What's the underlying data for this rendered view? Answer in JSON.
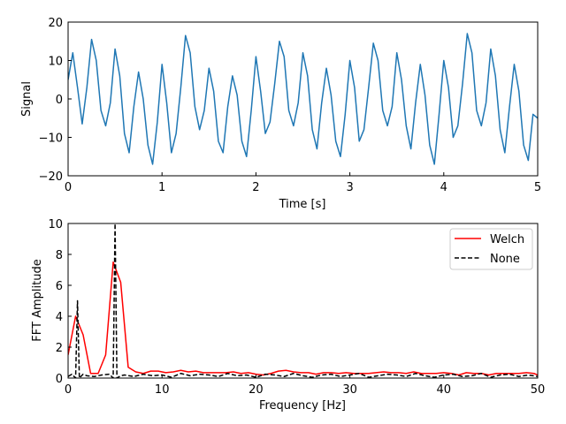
{
  "chart_data": [
    {
      "type": "line",
      "xlabel": "Time [s]",
      "ylabel": "Signal",
      "xlim": [
        0,
        5
      ],
      "ylim": [
        -20,
        20
      ],
      "xticks": [
        0,
        1,
        2,
        3,
        4,
        5
      ],
      "yticks": [
        -20,
        -10,
        0,
        10,
        20
      ],
      "grid": false,
      "series": [
        {
          "color": "#1f77b4",
          "x": [
            0.0,
            0.05,
            0.1,
            0.15,
            0.2,
            0.25,
            0.3,
            0.35,
            0.4,
            0.45,
            0.5,
            0.55,
            0.6,
            0.65,
            0.7,
            0.75,
            0.8,
            0.85,
            0.9,
            0.95,
            1.0,
            1.05,
            1.1,
            1.15,
            1.2,
            1.25,
            1.3,
            1.35,
            1.4,
            1.45,
            1.5,
            1.55,
            1.6,
            1.65,
            1.7,
            1.75,
            1.8,
            1.85,
            1.9,
            1.95,
            2.0,
            2.05,
            2.1,
            2.15,
            2.2,
            2.25,
            2.3,
            2.35,
            2.4,
            2.45,
            2.5,
            2.55,
            2.6,
            2.65,
            2.7,
            2.75,
            2.8,
            2.85,
            2.9,
            2.95,
            3.0,
            3.05,
            3.1,
            3.15,
            3.2,
            3.25,
            3.3,
            3.35,
            3.4,
            3.45,
            3.5,
            3.55,
            3.6,
            3.65,
            3.7,
            3.75,
            3.8,
            3.85,
            3.9,
            3.95,
            4.0,
            4.05,
            4.1,
            4.15,
            4.2,
            4.25,
            4.3,
            4.35,
            4.4,
            4.45,
            4.5,
            4.55,
            4.6,
            4.65,
            4.7,
            4.75,
            4.8,
            4.85,
            4.9,
            4.95,
            5.0
          ],
          "values": [
            5.0,
            12.0,
            3.0,
            -6.5,
            3.0,
            15.5,
            10.0,
            -3.0,
            -7.0,
            -1.0,
            13.0,
            6.0,
            -9.0,
            -14.0,
            -2.0,
            7.0,
            0.0,
            -12.0,
            -17.0,
            -6.0,
            9.0,
            -1.0,
            -14.0,
            -9.0,
            3.0,
            16.5,
            12.0,
            -2.0,
            -8.0,
            -3.0,
            8.0,
            2.0,
            -11.0,
            -14.0,
            -2.0,
            6.0,
            1.0,
            -11.0,
            -15.0,
            -3.0,
            11.0,
            2.0,
            -9.0,
            -6.0,
            4.0,
            15.0,
            11.0,
            -3.0,
            -7.0,
            -1.0,
            12.0,
            6.0,
            -8.0,
            -13.0,
            -1.0,
            8.0,
            1.0,
            -11.0,
            -15.0,
            -4.0,
            10.0,
            3.0,
            -11.0,
            -8.0,
            3.0,
            14.5,
            10.0,
            -3.0,
            -7.0,
            -2.0,
            12.0,
            5.0,
            -7.0,
            -13.0,
            -1.0,
            9.0,
            1.0,
            -12.0,
            -17.0,
            -4.0,
            10.0,
            3.0,
            -10.0,
            -7.0,
            4.0,
            17.0,
            12.0,
            -3.0,
            -7.0,
            -1.0,
            13.0,
            6.0,
            -8.0,
            -14.0,
            -2.0,
            9.0,
            2.0,
            -12.0,
            -16.0,
            -4.0,
            -5.0
          ]
        }
      ]
    },
    {
      "type": "line",
      "xlabel": "Frequency [Hz]",
      "ylabel": "FFT Amplitude",
      "xlim": [
        0,
        50
      ],
      "ylim": [
        0,
        10
      ],
      "xticks": [
        0,
        10,
        20,
        30,
        40,
        50
      ],
      "yticks": [
        0,
        2,
        4,
        6,
        8,
        10
      ],
      "grid": false,
      "legend": "top-right",
      "series": [
        {
          "name": "Welch",
          "color": "#ff0000",
          "dash": "solid",
          "x": [
            0,
            0.8,
            1.6,
            2.4,
            3.2,
            4.0,
            4.8,
            5.6,
            6.4,
            7.2,
            8.0,
            8.8,
            9.6,
            10.4,
            11.2,
            12.0,
            12.8,
            13.6,
            14.4,
            15.2,
            16.0,
            16.8,
            17.6,
            18.4,
            19.2,
            20.0,
            20.8,
            21.6,
            22.4,
            23.2,
            24.0,
            24.8,
            25.6,
            26.4,
            27.2,
            28.0,
            28.8,
            29.6,
            30.4,
            31.2,
            32.0,
            32.8,
            33.6,
            34.4,
            35.2,
            36.0,
            36.8,
            37.6,
            38.4,
            39.2,
            40.0,
            40.8,
            41.6,
            42.4,
            43.2,
            44.0,
            44.8,
            45.6,
            46.4,
            47.2,
            48.0,
            48.8,
            49.6,
            50.0
          ],
          "values": [
            1.5,
            4.0,
            2.8,
            0.3,
            0.3,
            1.5,
            7.5,
            6.2,
            0.7,
            0.4,
            0.3,
            0.45,
            0.45,
            0.35,
            0.4,
            0.5,
            0.4,
            0.45,
            0.35,
            0.35,
            0.35,
            0.35,
            0.4,
            0.3,
            0.35,
            0.25,
            0.2,
            0.3,
            0.45,
            0.5,
            0.4,
            0.35,
            0.35,
            0.25,
            0.35,
            0.35,
            0.3,
            0.35,
            0.3,
            0.3,
            0.3,
            0.35,
            0.4,
            0.35,
            0.35,
            0.3,
            0.4,
            0.3,
            0.3,
            0.3,
            0.35,
            0.3,
            0.2,
            0.35,
            0.3,
            0.3,
            0.2,
            0.3,
            0.3,
            0.3,
            0.3,
            0.35,
            0.3,
            0.2
          ]
        },
        {
          "name": "None",
          "color": "#000000",
          "dash": "dashed",
          "x": [
            0,
            0.4,
            0.8,
            1.0,
            1.2,
            1.6,
            2.0,
            2.8,
            3.6,
            4.4,
            4.8,
            5.0,
            5.2,
            5.6,
            6.0,
            7.0,
            8.0,
            9.0,
            10.0,
            11.0,
            12.0,
            13.0,
            14.0,
            15.0,
            16.0,
            17.0,
            18.0,
            19.0,
            20.0,
            21.0,
            22.0,
            23.0,
            24.0,
            25.0,
            26.0,
            27.0,
            28.0,
            29.0,
            30.0,
            31.0,
            32.0,
            33.0,
            34.0,
            35.0,
            36.0,
            37.0,
            38.0,
            39.0,
            40.0,
            41.0,
            42.0,
            43.0,
            44.0,
            45.0,
            46.0,
            47.0,
            48.0,
            49.0,
            50.0
          ],
          "values": [
            0.1,
            0.25,
            0.0,
            5.0,
            0.0,
            0.25,
            0.15,
            0.1,
            0.2,
            0.25,
            0.0,
            10.0,
            0.0,
            0.15,
            0.2,
            0.1,
            0.25,
            0.15,
            0.2,
            0.05,
            0.3,
            0.15,
            0.25,
            0.2,
            0.1,
            0.3,
            0.15,
            0.2,
            0.05,
            0.25,
            0.2,
            0.1,
            0.3,
            0.15,
            0.05,
            0.2,
            0.25,
            0.1,
            0.2,
            0.3,
            0.05,
            0.15,
            0.25,
            0.2,
            0.1,
            0.3,
            0.15,
            0.05,
            0.2,
            0.25,
            0.1,
            0.15,
            0.3,
            0.05,
            0.2,
            0.25,
            0.1,
            0.2,
            0.1
          ]
        }
      ]
    }
  ]
}
